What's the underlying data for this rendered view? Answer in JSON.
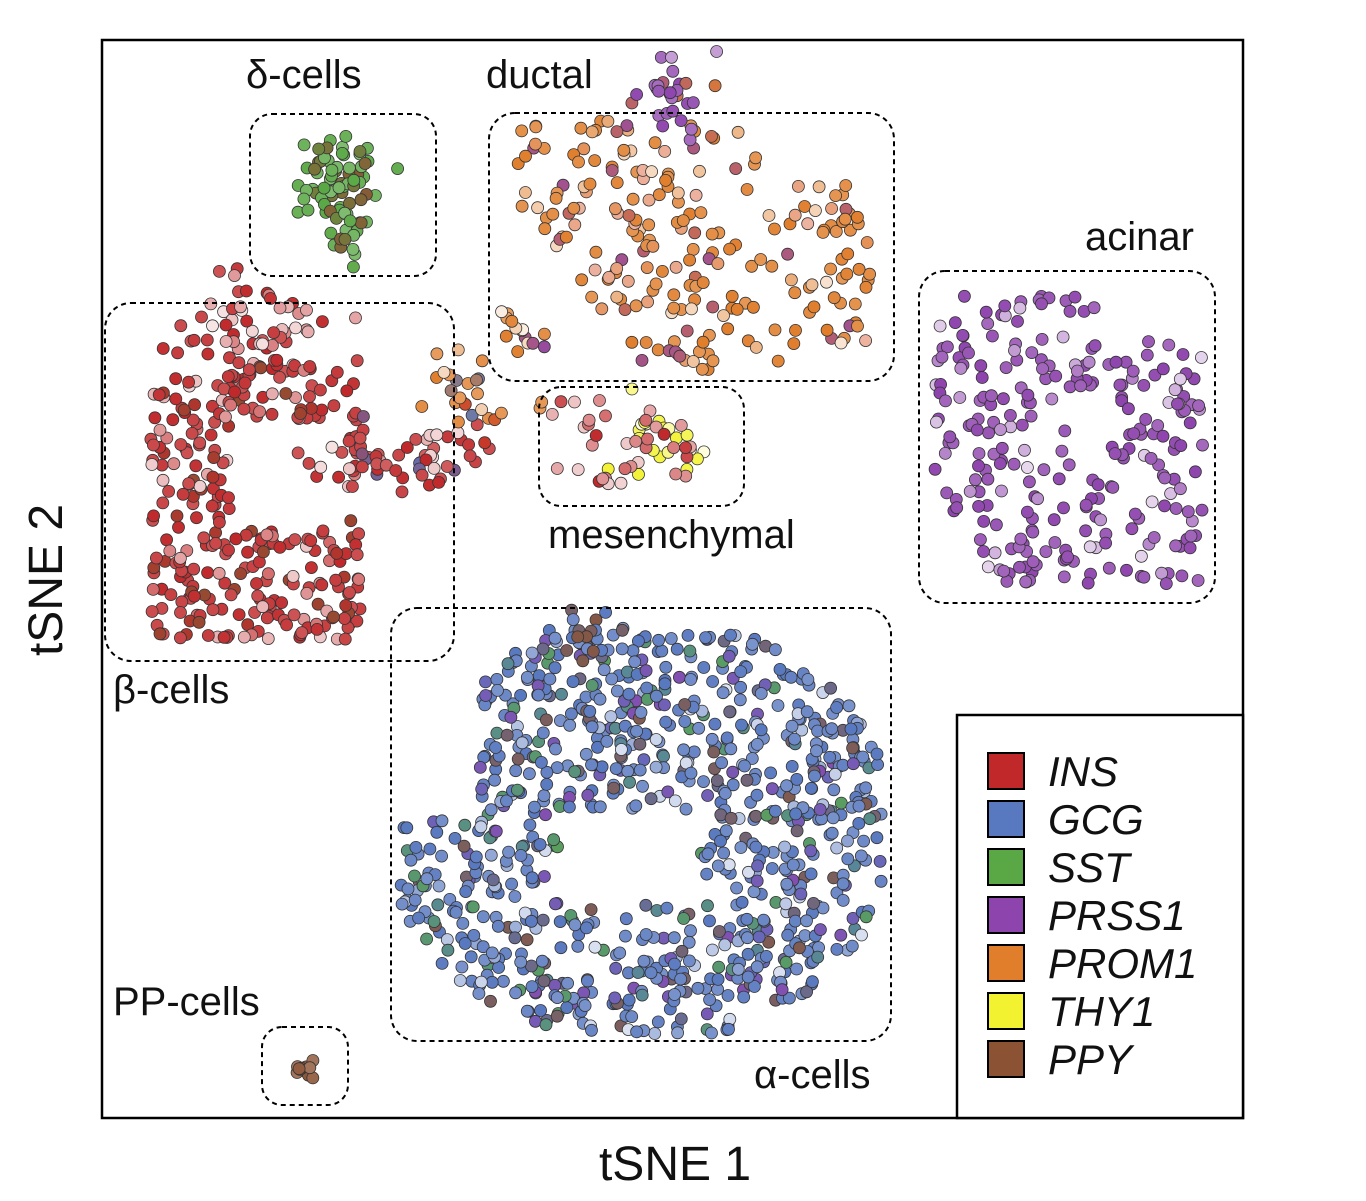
{
  "chart_data": {
    "type": "scatter",
    "xlabel": "tSNE 1",
    "ylabel": "tSNE 2",
    "axes": {
      "ticks": "none",
      "grid": false
    },
    "legend": {
      "placement": "bottom-right",
      "entries": [
        {
          "gene": "INS",
          "color": "#c0282a"
        },
        {
          "gene": "GCG",
          "color": "#5878bf"
        },
        {
          "gene": "SST",
          "color": "#5aa845"
        },
        {
          "gene": "PRSS1",
          "color": "#8e44ad"
        },
        {
          "gene": "PROM1",
          "color": "#e07e2c"
        },
        {
          "gene": "THY1",
          "color": "#f2f230"
        },
        {
          "gene": "PPY",
          "color": "#8b5334"
        }
      ]
    },
    "clusters": [
      {
        "label": "δ-cells",
        "marker_gene": "SST",
        "approx_cells": 90
      },
      {
        "label": "ductal",
        "marker_gene": "PROM1",
        "approx_cells": 300
      },
      {
        "label": "acinar",
        "marker_gene": "PRSS1",
        "approx_cells": 280
      },
      {
        "label": "β-cells",
        "marker_gene": "INS",
        "approx_cells": 480
      },
      {
        "label": "mesenchymal",
        "marker_gene": "THY1",
        "approx_cells": 70
      },
      {
        "label": "α-cells",
        "marker_gene": "GCG",
        "approx_cells": 950
      },
      {
        "label": "PP-cells",
        "marker_gene": "PPY",
        "approx_cells": 12
      }
    ]
  }
}
